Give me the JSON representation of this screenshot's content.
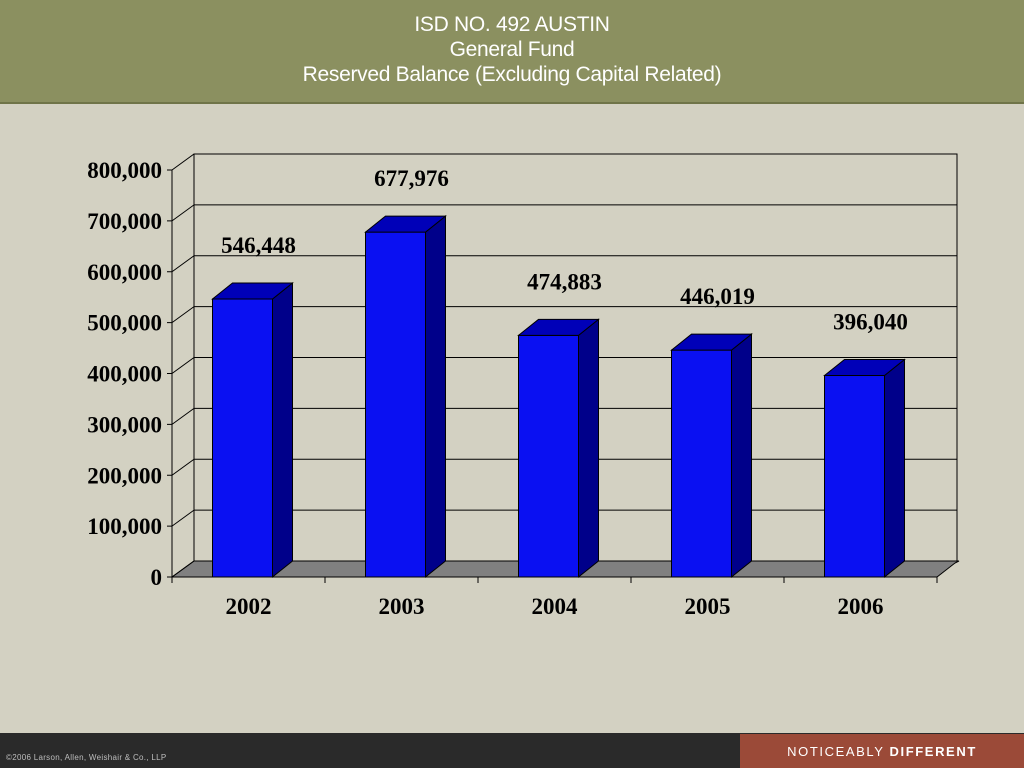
{
  "header": {
    "title_line1": "ISD NO. 492 AUSTIN",
    "title_line2": "General Fund",
    "title_line3": "Reserved Balance (Excluding Capital Related)"
  },
  "chart_data": {
    "type": "bar",
    "categories": [
      "2002",
      "2003",
      "2004",
      "2005",
      "2006"
    ],
    "values": [
      546448,
      677976,
      474883,
      446019,
      396040
    ],
    "data_labels": [
      "546,448",
      "677,976",
      "474,883",
      "446,019",
      "396,040"
    ],
    "yticks": [
      "0",
      "100,000",
      "200,000",
      "300,000",
      "400,000",
      "500,000",
      "600,000",
      "700,000",
      "800,000"
    ],
    "ylim": [
      0,
      800000
    ],
    "grid": true,
    "legend": "none",
    "style": "3d",
    "colors": {
      "bar_front": "#0a10f2",
      "bar_side": "#00008a",
      "bar_top": "#0000b8",
      "floor": "#808080",
      "gridline": "#000000"
    }
  },
  "footer": {
    "copyright": "©2006 Larson, Allen, Weishair & Co., LLP",
    "tagline_regular": "NOTICEABLY",
    "tagline_bold": "DIFFERENT",
    "colors": {
      "bar": "#2a2a2a",
      "accent": "#9b4a38"
    }
  }
}
